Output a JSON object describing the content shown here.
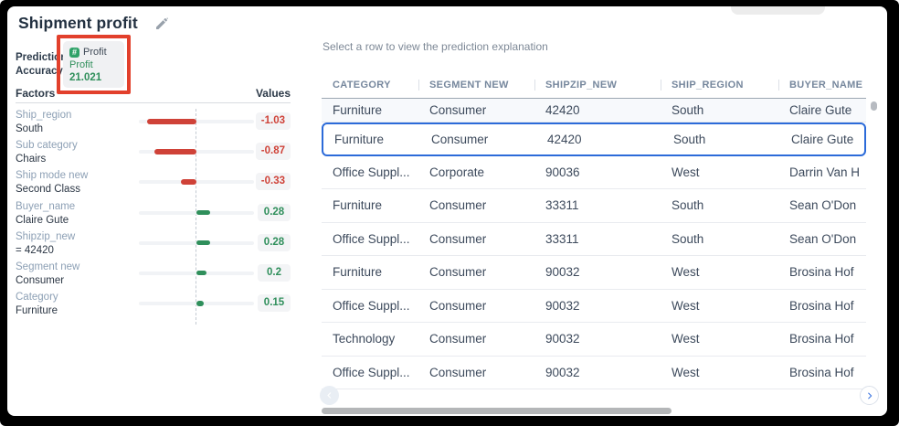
{
  "header": {
    "title": "Shipment profit"
  },
  "prediction": {
    "label": "Prediction Accuracy",
    "badge": {
      "icon_glyph": "#",
      "metric": "Profit",
      "target": "Profit",
      "value": "21.021"
    }
  },
  "factors_panel": {
    "factors_header": "Factors",
    "values_header": "Values",
    "axis_max_abs": 1.2,
    "factors": [
      {
        "name": "Ship_region",
        "value_label": "South",
        "value": -1.03,
        "display": "-1.03"
      },
      {
        "name": "Sub category",
        "value_label": "Chairs",
        "value": -0.87,
        "display": "-0.87"
      },
      {
        "name": "Ship mode new",
        "value_label": "Second Class",
        "value": -0.33,
        "display": "-0.33"
      },
      {
        "name": "Buyer_name",
        "value_label": "Claire Gute",
        "value": 0.28,
        "display": "0.28"
      },
      {
        "name": "Shipzip_new",
        "value_label": "= 42420",
        "value": 0.28,
        "display": "0.28"
      },
      {
        "name": "Segment new",
        "value_label": "Consumer",
        "value": 0.2,
        "display": "0.2"
      },
      {
        "name": "Category",
        "value_label": "Furniture",
        "value": 0.15,
        "display": "0.15"
      }
    ]
  },
  "table": {
    "hint": "Select a row to view the prediction explanation",
    "columns": [
      "CATEGORY",
      "SEGMENT NEW",
      "SHIPZIP_NEW",
      "SHIP_REGION",
      "BUYER_NAME"
    ],
    "rows": [
      [
        "Furniture",
        "Consumer",
        "42420",
        "South",
        "Claire Gute"
      ],
      [
        "Furniture",
        "Consumer",
        "42420",
        "South",
        "Claire Gute"
      ],
      [
        "Office Suppl...",
        "Corporate",
        "90036",
        "West",
        "Darrin Van H"
      ],
      [
        "Furniture",
        "Consumer",
        "33311",
        "South",
        "Sean O'Don"
      ],
      [
        "Office Suppl...",
        "Consumer",
        "33311",
        "South",
        "Sean O'Don"
      ],
      [
        "Furniture",
        "Consumer",
        "90032",
        "West",
        "Brosina Hof"
      ],
      [
        "Office Suppl...",
        "Consumer",
        "90032",
        "West",
        "Brosina Hof"
      ],
      [
        "Technology",
        "Consumer",
        "90032",
        "West",
        "Brosina Hof"
      ],
      [
        "Office Suppl...",
        "Consumer",
        "90032",
        "West",
        "Brosina Hof"
      ]
    ],
    "selected_row_index": 1
  },
  "colors": {
    "negative": "#cf4238",
    "positive": "#2f8f5b",
    "selection": "#2c6bd9",
    "annotation": "#e2402c",
    "chevron_blue": "#3b74e0"
  }
}
